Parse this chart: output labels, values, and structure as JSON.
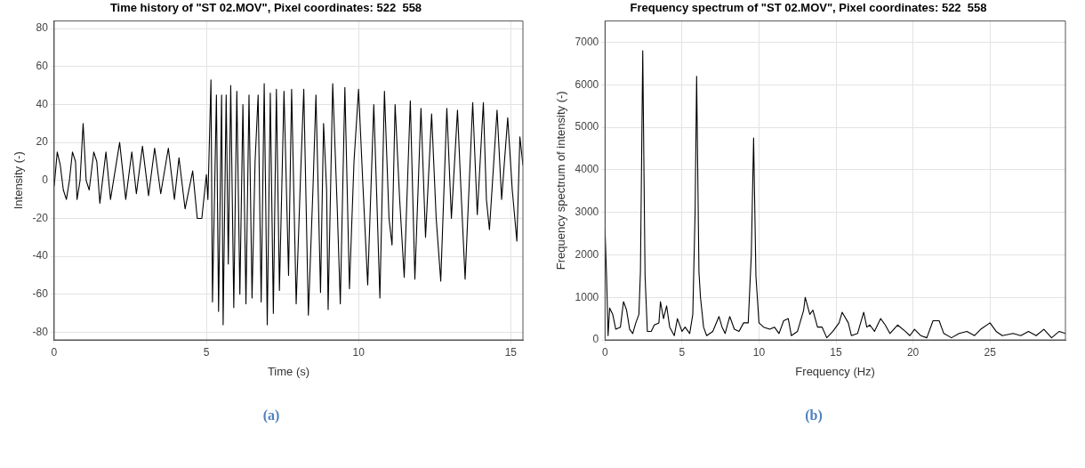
{
  "chart_data": [
    {
      "type": "line",
      "title": "Time history of \"ST 02.MOV\", Pixel coordinates: 522  558",
      "xlabel": "Time (s)",
      "ylabel": "Intensity (-)",
      "xlim": [
        0,
        15.4
      ],
      "ylim": [
        -84,
        84
      ],
      "xticks": [
        0,
        5,
        10,
        15
      ],
      "yticks": [
        -80,
        -60,
        -40,
        -20,
        0,
        20,
        40,
        60,
        80
      ],
      "grid": true,
      "annotations": [
        "(a)"
      ],
      "series": [
        {
          "color": "#000000",
          "x": [
            0,
            0.1,
            0.2,
            0.3,
            0.4,
            0.5,
            0.6,
            0.7,
            0.75,
            0.85,
            0.95,
            1.05,
            1.15,
            1.3,
            1.4,
            1.5,
            1.7,
            1.85,
            2.0,
            2.15,
            2.35,
            2.55,
            2.7,
            2.9,
            3.1,
            3.3,
            3.5,
            3.75,
            3.95,
            4.1,
            4.3,
            4.55,
            4.7,
            4.85,
            5.0,
            5.05,
            5.15,
            5.2,
            5.33,
            5.4,
            5.5,
            5.55,
            5.65,
            5.72,
            5.8,
            5.9,
            6.0,
            6.1,
            6.2,
            6.3,
            6.4,
            6.5,
            6.6,
            6.7,
            6.8,
            6.9,
            7.0,
            7.1,
            7.2,
            7.3,
            7.4,
            7.55,
            7.7,
            7.8,
            7.95,
            8.1,
            8.2,
            8.35,
            8.5,
            8.6,
            8.75,
            8.85,
            8.95,
            9.0,
            9.15,
            9.3,
            9.4,
            9.55,
            9.7,
            9.85,
            10.0,
            10.15,
            10.3,
            10.5,
            10.6,
            10.7,
            10.85,
            11.0,
            11.1,
            11.2,
            11.35,
            11.5,
            11.7,
            11.85,
            12.05,
            12.2,
            12.4,
            12.55,
            12.7,
            12.9,
            13.05,
            13.25,
            13.35,
            13.5,
            13.75,
            13.9,
            14.1,
            14.2,
            14.3,
            14.55,
            14.7,
            14.9,
            15.05,
            15.2,
            15.3,
            15.4
          ],
          "values": [
            -3,
            15,
            8,
            -5,
            -10,
            0,
            15,
            10,
            -10,
            0,
            30,
            0,
            -5,
            15,
            10,
            -12,
            15,
            -10,
            5,
            20,
            -10,
            15,
            -7,
            18,
            -8,
            17,
            -7,
            17,
            -10,
            12,
            -15,
            5,
            -20,
            -20,
            3,
            -10,
            53,
            -64,
            45,
            -69,
            45,
            -76,
            45,
            -44,
            50,
            -67,
            47,
            -60,
            40,
            -65,
            45,
            -62,
            10,
            45,
            -64,
            51,
            -76,
            46,
            -70,
            48,
            -58,
            47,
            -50,
            48,
            -65,
            5,
            48,
            -71,
            -5,
            45,
            -59,
            30,
            -5,
            -68,
            51,
            -15,
            -65,
            49,
            -57,
            10,
            48,
            -5,
            -55,
            40,
            -10,
            -62,
            47,
            -20,
            -34,
            40,
            -10,
            -51,
            42,
            -52,
            38,
            -30,
            35,
            -20,
            -53,
            38,
            -20,
            37,
            0,
            -52,
            41,
            -18,
            41,
            -10,
            -26,
            37,
            -10,
            33,
            -5,
            -32,
            23,
            8
          ]
        }
      ]
    },
    {
      "type": "line",
      "title": "Frequency spectrum of \"ST 02.MOV\", Pixel coordinates: 522  558",
      "xlabel": "Frequency (Hz)",
      "ylabel": "Frequency spectrum of intensity (-)",
      "xlim": [
        0,
        29.9
      ],
      "ylim": [
        0,
        7500
      ],
      "xticks": [
        0,
        5,
        10,
        15,
        20,
        25
      ],
      "yticks": [
        0,
        1000,
        2000,
        3000,
        4000,
        5000,
        6000,
        7000
      ],
      "grid": true,
      "annotations": [
        "(b)"
      ],
      "series": [
        {
          "color": "#000000",
          "x": [
            0,
            0.1,
            0.2,
            0.3,
            0.5,
            0.7,
            1.0,
            1.2,
            1.4,
            1.6,
            1.8,
            2.0,
            2.2,
            2.3,
            2.45,
            2.6,
            2.75,
            3.0,
            3.2,
            3.5,
            3.6,
            3.8,
            4.0,
            4.2,
            4.5,
            4.7,
            5.0,
            5.2,
            5.5,
            5.7,
            5.85,
            5.95,
            6.1,
            6.2,
            6.4,
            6.6,
            7.0,
            7.4,
            7.6,
            7.8,
            8.1,
            8.4,
            8.7,
            9.0,
            9.3,
            9.5,
            9.65,
            9.8,
            10.0,
            10.3,
            10.7,
            11.0,
            11.3,
            11.6,
            11.9,
            12.1,
            12.5,
            12.9,
            13.0,
            13.3,
            13.5,
            13.8,
            14.1,
            14.4,
            14.8,
            15.2,
            15.4,
            15.8,
            16.0,
            16.4,
            16.8,
            17.0,
            17.2,
            17.5,
            17.9,
            18.2,
            18.5,
            19.0,
            19.5,
            19.8,
            20.1,
            20.5,
            20.9,
            21.3,
            21.7,
            22.0,
            22.5,
            23.0,
            23.5,
            24.0,
            24.4,
            25.0,
            25.4,
            25.8,
            26.5,
            27.0,
            27.5,
            28.0,
            28.5,
            29.0,
            29.5,
            29.9
          ],
          "values": [
            2600,
            1500,
            100,
            750,
            600,
            250,
            300,
            900,
            700,
            250,
            150,
            400,
            600,
            1600,
            6800,
            1500,
            200,
            200,
            350,
            400,
            900,
            500,
            800,
            300,
            100,
            500,
            200,
            300,
            150,
            600,
            3000,
            6200,
            1600,
            1000,
            300,
            100,
            200,
            550,
            300,
            150,
            550,
            250,
            200,
            400,
            400,
            2000,
            4750,
            1500,
            400,
            300,
            250,
            300,
            150,
            450,
            500,
            100,
            200,
            700,
            1000,
            600,
            700,
            300,
            300,
            50,
            200,
            400,
            650,
            400,
            100,
            150,
            650,
            300,
            350,
            200,
            500,
            350,
            150,
            350,
            200,
            100,
            250,
            100,
            50,
            450,
            450,
            150,
            50,
            150,
            200,
            100,
            250,
            400,
            200,
            100,
            150,
            100,
            200,
            100,
            250,
            50,
            200,
            150
          ]
        }
      ]
    }
  ]
}
